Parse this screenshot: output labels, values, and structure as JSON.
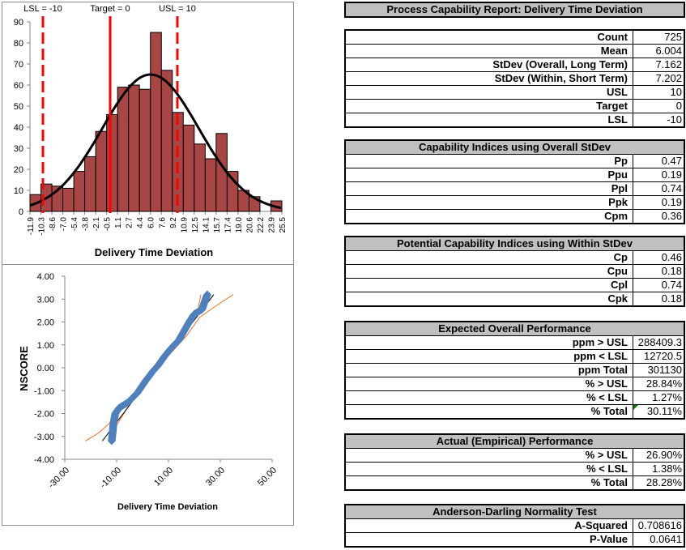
{
  "title": "Process Capability Report: Delivery Time Deviation",
  "stats": {
    "rows": [
      {
        "label": "Count",
        "value": "725"
      },
      {
        "label": "Mean",
        "value": "6.004"
      },
      {
        "label": "StDev (Overall, Long Term)",
        "value": "7.162"
      },
      {
        "label": "StDev (Within, Short Term)",
        "value": "7.202"
      },
      {
        "label": "USL",
        "value": "10"
      },
      {
        "label": "Target",
        "value": "0"
      },
      {
        "label": "LSL",
        "value": "-10"
      }
    ]
  },
  "overall_indices": {
    "header": "Capability Indices using Overall StDev",
    "rows": [
      {
        "label": "Pp",
        "value": "0.47"
      },
      {
        "label": "Ppu",
        "value": "0.19"
      },
      {
        "label": "Ppl",
        "value": "0.74"
      },
      {
        "label": "Ppk",
        "value": "0.19"
      },
      {
        "label": "Cpm",
        "value": "0.36"
      }
    ]
  },
  "within_indices": {
    "header": "Potential Capability Indices using Within StDev",
    "rows": [
      {
        "label": "Cp",
        "value": "0.46"
      },
      {
        "label": "Cpu",
        "value": "0.18"
      },
      {
        "label": "Cpl",
        "value": "0.74"
      },
      {
        "label": "Cpk",
        "value": "0.18"
      }
    ]
  },
  "expected_performance": {
    "header": "Expected Overall Performance",
    "rows": [
      {
        "label": "ppm > USL",
        "value": "288409.3"
      },
      {
        "label": "ppm < LSL",
        "value": "12720.5"
      },
      {
        "label": "ppm Total",
        "value": "301130"
      },
      {
        "label": "% > USL",
        "value": "28.84%"
      },
      {
        "label": "% < LSL",
        "value": "1.27%"
      },
      {
        "label": "% Total",
        "value": "30.11%"
      }
    ]
  },
  "actual_performance": {
    "header": "Actual (Empirical) Performance",
    "rows": [
      {
        "label": "% > USL",
        "value": "26.90%"
      },
      {
        "label": "% < LSL",
        "value": "1.38%"
      },
      {
        "label": "% Total",
        "value": "28.28%"
      }
    ]
  },
  "normality_test": {
    "header": "Anderson-Darling Normality Test",
    "rows": [
      {
        "label": "A-Squared",
        "value": "0.708616"
      },
      {
        "label": "P-Value",
        "value": "0.0641"
      }
    ]
  },
  "colors": {
    "bar_fill": "#a84646",
    "spec_line": "#ff0000",
    "normal_curve": "#000000",
    "scatter_marker": "#4f81bd",
    "confidence_band": "#f07020"
  },
  "chart_data": [
    {
      "type": "bar",
      "title": "",
      "xlabel": "Delivery Time Deviation",
      "ylabel": "",
      "ylim": [
        0,
        90
      ],
      "yticks": [
        0,
        10,
        20,
        30,
        40,
        50,
        60,
        70,
        80,
        90
      ],
      "bin_edges": [
        "-11.9",
        "-10.3",
        "-8.6",
        "-7.0",
        "-5.4",
        "-3.8",
        "-2.1",
        "-0.5",
        "1.1",
        "2.7",
        "4.4",
        "6.0",
        "7.6",
        "9.2",
        "10.9",
        "12.5",
        "14.1",
        "15.7",
        "17.4",
        "19.0",
        "20.6",
        "22.2",
        "23.9",
        "25.5"
      ],
      "values": [
        8,
        13,
        12,
        11,
        19,
        26,
        38,
        46,
        59,
        60,
        58,
        85,
        67,
        47,
        41,
        32,
        25,
        37,
        19,
        10,
        7,
        0,
        5
      ],
      "overlay": {
        "type": "normal_curve",
        "mean": 6.004,
        "stdev": 7.162,
        "peak": 65
      },
      "reference_lines": [
        {
          "label": "LSL = -10",
          "x": -10,
          "style": "dashed"
        },
        {
          "label": "Target = 0",
          "x": 0,
          "style": "solid"
        },
        {
          "label": "USL = 10",
          "x": 10,
          "style": "dashed"
        }
      ],
      "grid": false,
      "legend": "none"
    },
    {
      "type": "scatter",
      "title": "",
      "xlabel": "Delivery Time Deviation",
      "ylabel": "NSCORE",
      "xlim": [
        -30,
        50
      ],
      "ylim": [
        -4,
        4
      ],
      "xticks": [
        "-30.00",
        "-10.00",
        "10.00",
        "30.00",
        "50.00"
      ],
      "yticks": [
        "4.00",
        "3.00",
        "2.00",
        "1.00",
        "0.00",
        "-1.00",
        "-2.00",
        "-3.00",
        "-4.00"
      ],
      "series": [
        {
          "name": "Data",
          "points_approx": [
            [
              -11.9,
              -3.2
            ],
            [
              -11.5,
              -2.8
            ],
            [
              -11.2,
              -2.4
            ],
            [
              -10.5,
              -2.0
            ],
            [
              -9.0,
              -1.75
            ],
            [
              -5.5,
              -1.5
            ],
            [
              -2.0,
              -1.1
            ],
            [
              1.0,
              -0.6
            ],
            [
              4.0,
              -0.15
            ],
            [
              6.0,
              0.1
            ],
            [
              8.5,
              0.5
            ],
            [
              11.0,
              0.85
            ],
            [
              14.0,
              1.2
            ],
            [
              16.0,
              1.6
            ],
            [
              18.0,
              2.0
            ],
            [
              20.0,
              2.35
            ],
            [
              23.0,
              2.55
            ],
            [
              24.0,
              2.9
            ],
            [
              25.0,
              3.2
            ]
          ]
        },
        {
          "name": "Fit line",
          "points_approx": [
            [
              -15.5,
              -3.2
            ],
            [
              27.5,
              3.2
            ]
          ]
        },
        {
          "name": "Lower band",
          "points_approx": [
            [
              -22,
              -3.2
            ],
            [
              -17,
              -2.85
            ],
            [
              -12.5,
              -2.4
            ],
            [
              -8,
              -1.7
            ],
            [
              17,
              1.4
            ],
            [
              22,
              2.2
            ],
            [
              27,
              2.6
            ],
            [
              35,
              3.2
            ]
          ]
        },
        {
          "name": "Upper band",
          "points_approx": [
            [
              -11,
              -3.2
            ],
            [
              -10.5,
              -2.6
            ],
            [
              -5,
              -1.6
            ],
            [
              17,
              1.6
            ],
            [
              21.5,
              2.6
            ],
            [
              22.5,
              3.2
            ]
          ]
        }
      ],
      "grid": false,
      "legend": "none"
    }
  ]
}
